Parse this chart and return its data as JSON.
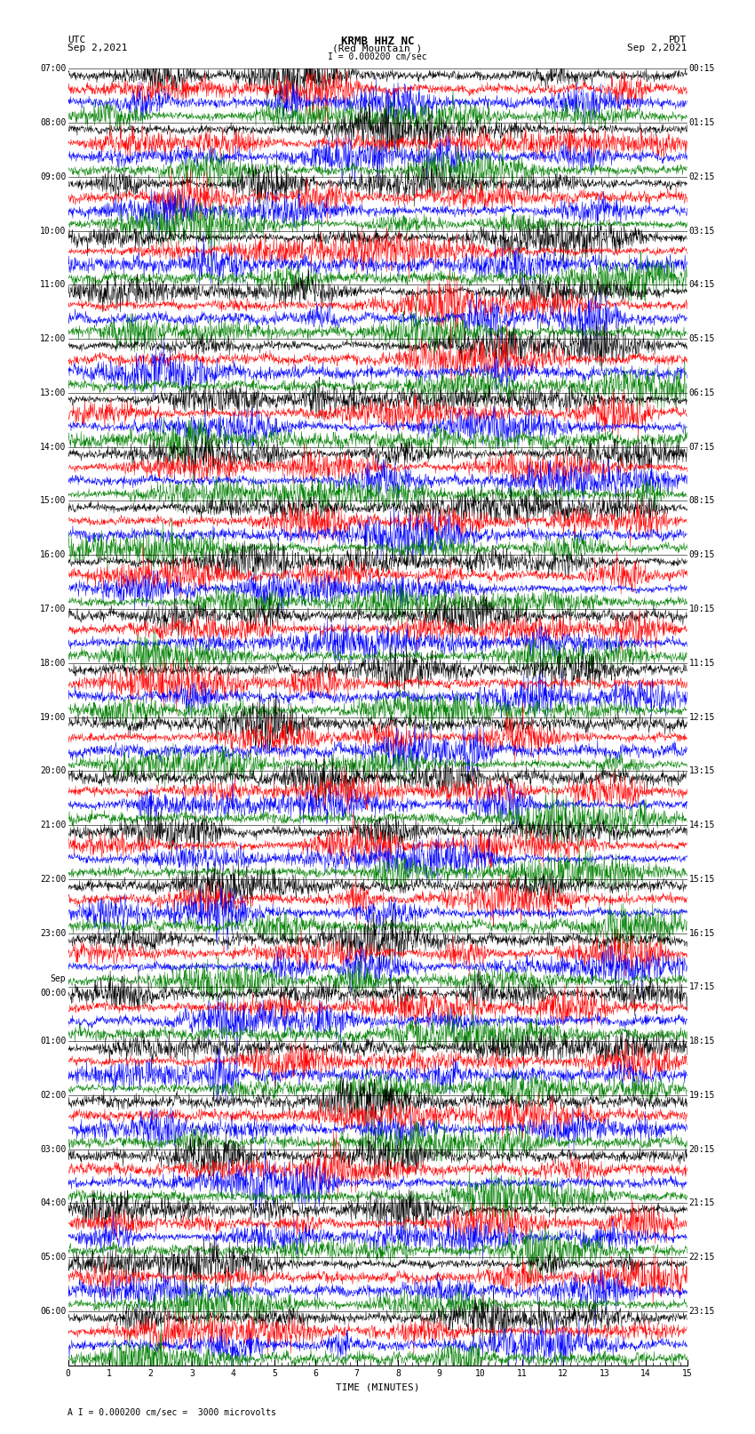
{
  "title_center_line1": "KRMB HHZ NC",
  "title_center_line2": "(Red Mountain )",
  "title_left_line1": "UTC",
  "title_left_line2": "Sep 2,2021",
  "title_right_line1": "PDT",
  "title_right_line2": "Sep 2,2021",
  "scale_label": "I = 0.000200 cm/sec",
  "bottom_label": "A I = 0.000200 cm/sec =  3000 microvolts",
  "xlabel": "TIME (MINUTES)",
  "xticks": [
    0,
    1,
    2,
    3,
    4,
    5,
    6,
    7,
    8,
    9,
    10,
    11,
    12,
    13,
    14,
    15
  ],
  "time_minutes": 15,
  "trace_colors": [
    "black",
    "red",
    "blue",
    "green"
  ],
  "background_color": "white",
  "left_times_utc": [
    "07:00",
    "08:00",
    "09:00",
    "10:00",
    "11:00",
    "12:00",
    "13:00",
    "14:00",
    "15:00",
    "16:00",
    "17:00",
    "18:00",
    "19:00",
    "20:00",
    "21:00",
    "22:00",
    "23:00",
    "Sep 00:00",
    "01:00",
    "02:00",
    "03:00",
    "04:00",
    "05:00",
    "06:00"
  ],
  "right_times_pdt": [
    "00:15",
    "01:15",
    "02:15",
    "03:15",
    "04:15",
    "05:15",
    "06:15",
    "07:15",
    "08:15",
    "09:15",
    "10:15",
    "11:15",
    "12:15",
    "13:15",
    "14:15",
    "15:15",
    "16:15",
    "17:15",
    "18:15",
    "19:15",
    "20:15",
    "21:15",
    "22:15",
    "23:15"
  ],
  "sep_block_index": 17,
  "fig_width": 8.5,
  "fig_height": 16.13,
  "dpi": 100,
  "font_size_title": 9,
  "font_size_label": 8,
  "font_size_tick": 7,
  "font_size_time": 8
}
